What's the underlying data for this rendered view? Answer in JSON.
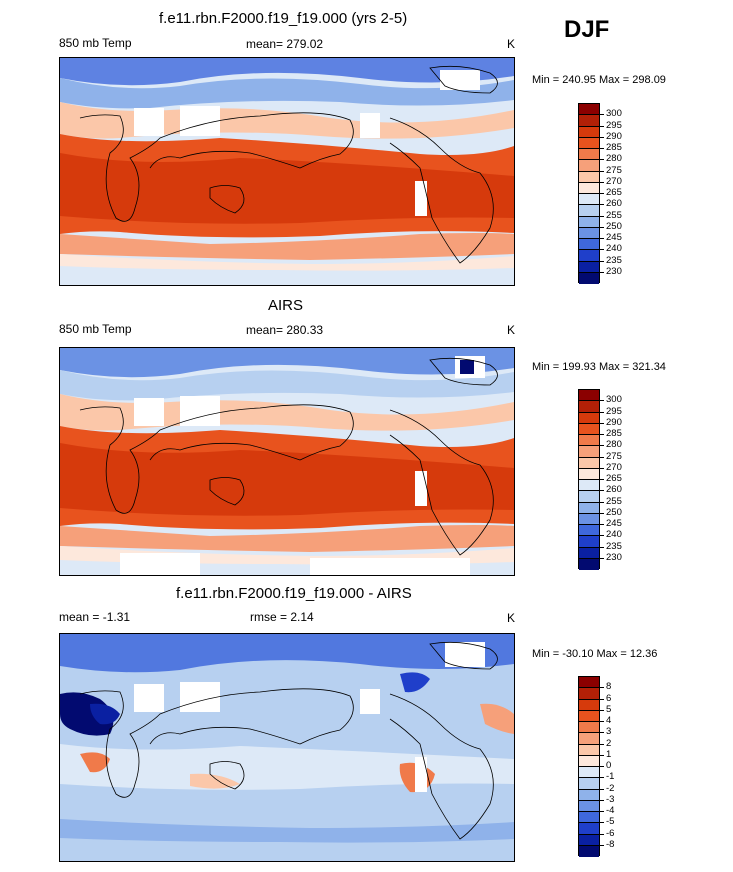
{
  "season": "DJF",
  "panels": [
    {
      "title": "f.e11.rbn.F2000.f19_f19.000 (yrs 2-5)",
      "left_label": "850 mb Temp",
      "center_label": "mean= 279.02",
      "right_label": "K",
      "minmax": "Min = 240.95 Max = 298.09"
    },
    {
      "title": "AIRS",
      "left_label": "850 mb Temp",
      "center_label": "mean= 280.33",
      "right_label": "K",
      "minmax": "Min = 199.93 Max = 321.34"
    },
    {
      "title": "f.e11.rbn.F2000.f19_f19.000 - AIRS",
      "left_label": "mean =  -1.31",
      "center_label": "rmse =   2.14",
      "right_label": "K",
      "minmax": "Min = -30.10 Max =  12.36"
    }
  ],
  "colorbar_abs": {
    "levels": [
      "300",
      "295",
      "290",
      "285",
      "280",
      "275",
      "270",
      "265",
      "260",
      "255",
      "250",
      "245",
      "240",
      "235",
      "230"
    ],
    "colors": [
      "#8b0000",
      "#b22007",
      "#d63a0c",
      "#e8531e",
      "#f07a4a",
      "#f6a07a",
      "#fbc7a9",
      "#fde8dc",
      "#dde9f7",
      "#b7d0f0",
      "#8fb2ea",
      "#6b92e4",
      "#3f68dc",
      "#1f3fca",
      "#0a20a2",
      "#020a70"
    ]
  },
  "colorbar_diff": {
    "levels": [
      "8",
      "6",
      "5",
      "4",
      "3",
      "2",
      "1",
      "0",
      "-1",
      "-2",
      "-3",
      "-4",
      "-5",
      "-6",
      "-8"
    ],
    "colors": [
      "#8b0000",
      "#b22007",
      "#d63a0c",
      "#e8531e",
      "#f07a4a",
      "#f6a07a",
      "#fbc7a9",
      "#fde8dc",
      "#dde9f7",
      "#b7d0f0",
      "#8fb2ea",
      "#6b92e4",
      "#3f68dc",
      "#1f3fca",
      "#0a20a2",
      "#020a70"
    ]
  },
  "chart_data": [
    {
      "type": "heatmap",
      "title": "f.e11.rbn.F2000.f19_f19.000 (yrs 2-5)",
      "variable": "850 mb Temp",
      "units": "K",
      "mean": 279.02,
      "min": 240.95,
      "max": 298.09,
      "contour_levels": [
        230,
        235,
        240,
        245,
        250,
        255,
        260,
        265,
        270,
        275,
        280,
        285,
        290,
        295,
        300
      ]
    },
    {
      "type": "heatmap",
      "title": "AIRS",
      "variable": "850 mb Temp",
      "units": "K",
      "mean": 280.33,
      "min": 199.93,
      "max": 321.34,
      "contour_levels": [
        230,
        235,
        240,
        245,
        250,
        255,
        260,
        265,
        270,
        275,
        280,
        285,
        290,
        295,
        300
      ]
    },
    {
      "type": "heatmap",
      "title": "f.e11.rbn.F2000.f19_f19.000 - AIRS",
      "units": "K",
      "mean": -1.31,
      "rmse": 2.14,
      "min": -30.1,
      "max": 12.36,
      "contour_levels": [
        -8,
        -6,
        -5,
        -4,
        -3,
        -2,
        -1,
        0,
        1,
        2,
        3,
        4,
        5,
        6,
        8
      ]
    }
  ]
}
